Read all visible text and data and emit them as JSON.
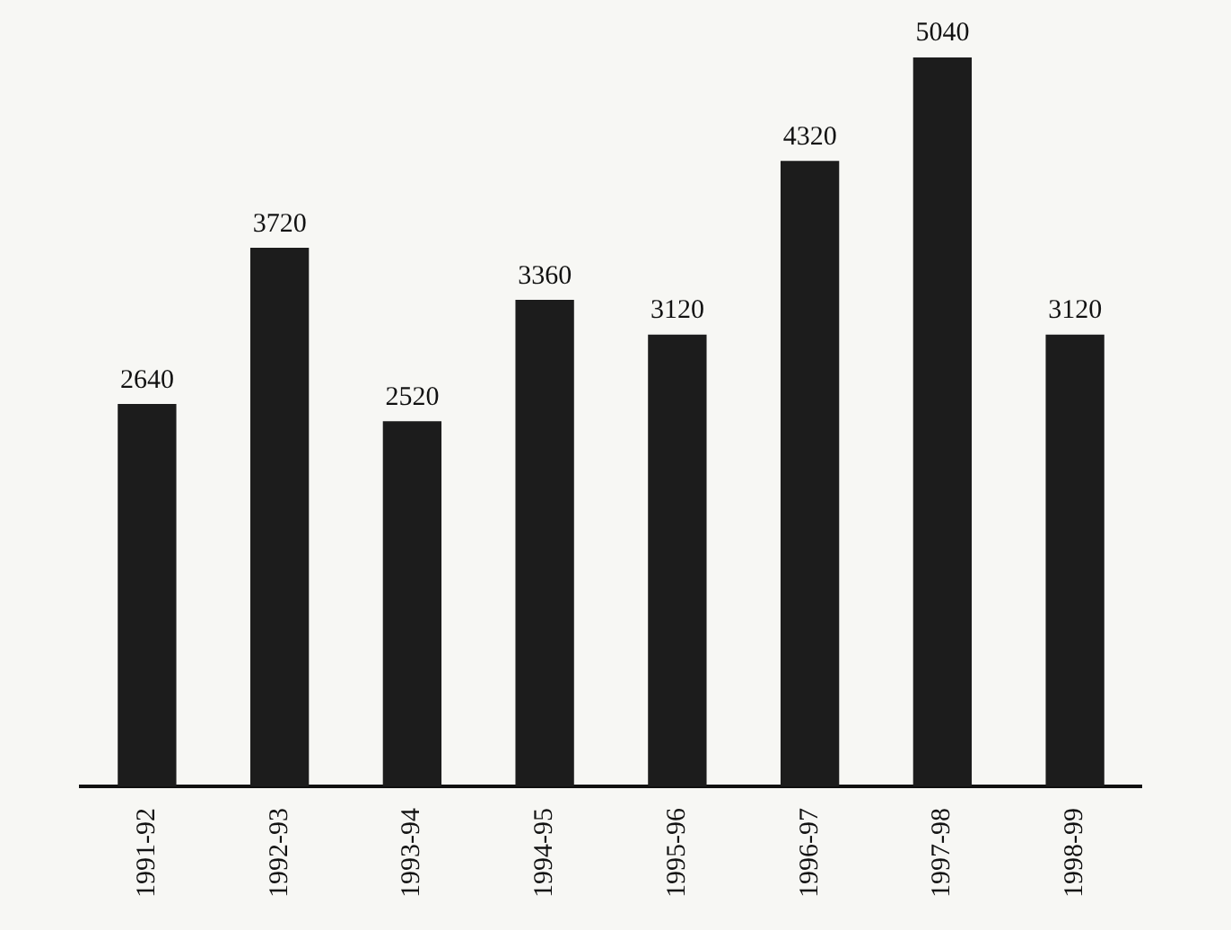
{
  "chart_data": {
    "type": "bar",
    "categories": [
      "1991-92",
      "1992-93",
      "1993-94",
      "1994-95",
      "1995-96",
      "1996-97",
      "1997-98",
      "1998-99"
    ],
    "values": [
      2640,
      3720,
      2520,
      3360,
      3120,
      4320,
      5040,
      3120
    ],
    "color": "#1c1c1c",
    "data_labels": true,
    "grid": false,
    "legend": false
  }
}
